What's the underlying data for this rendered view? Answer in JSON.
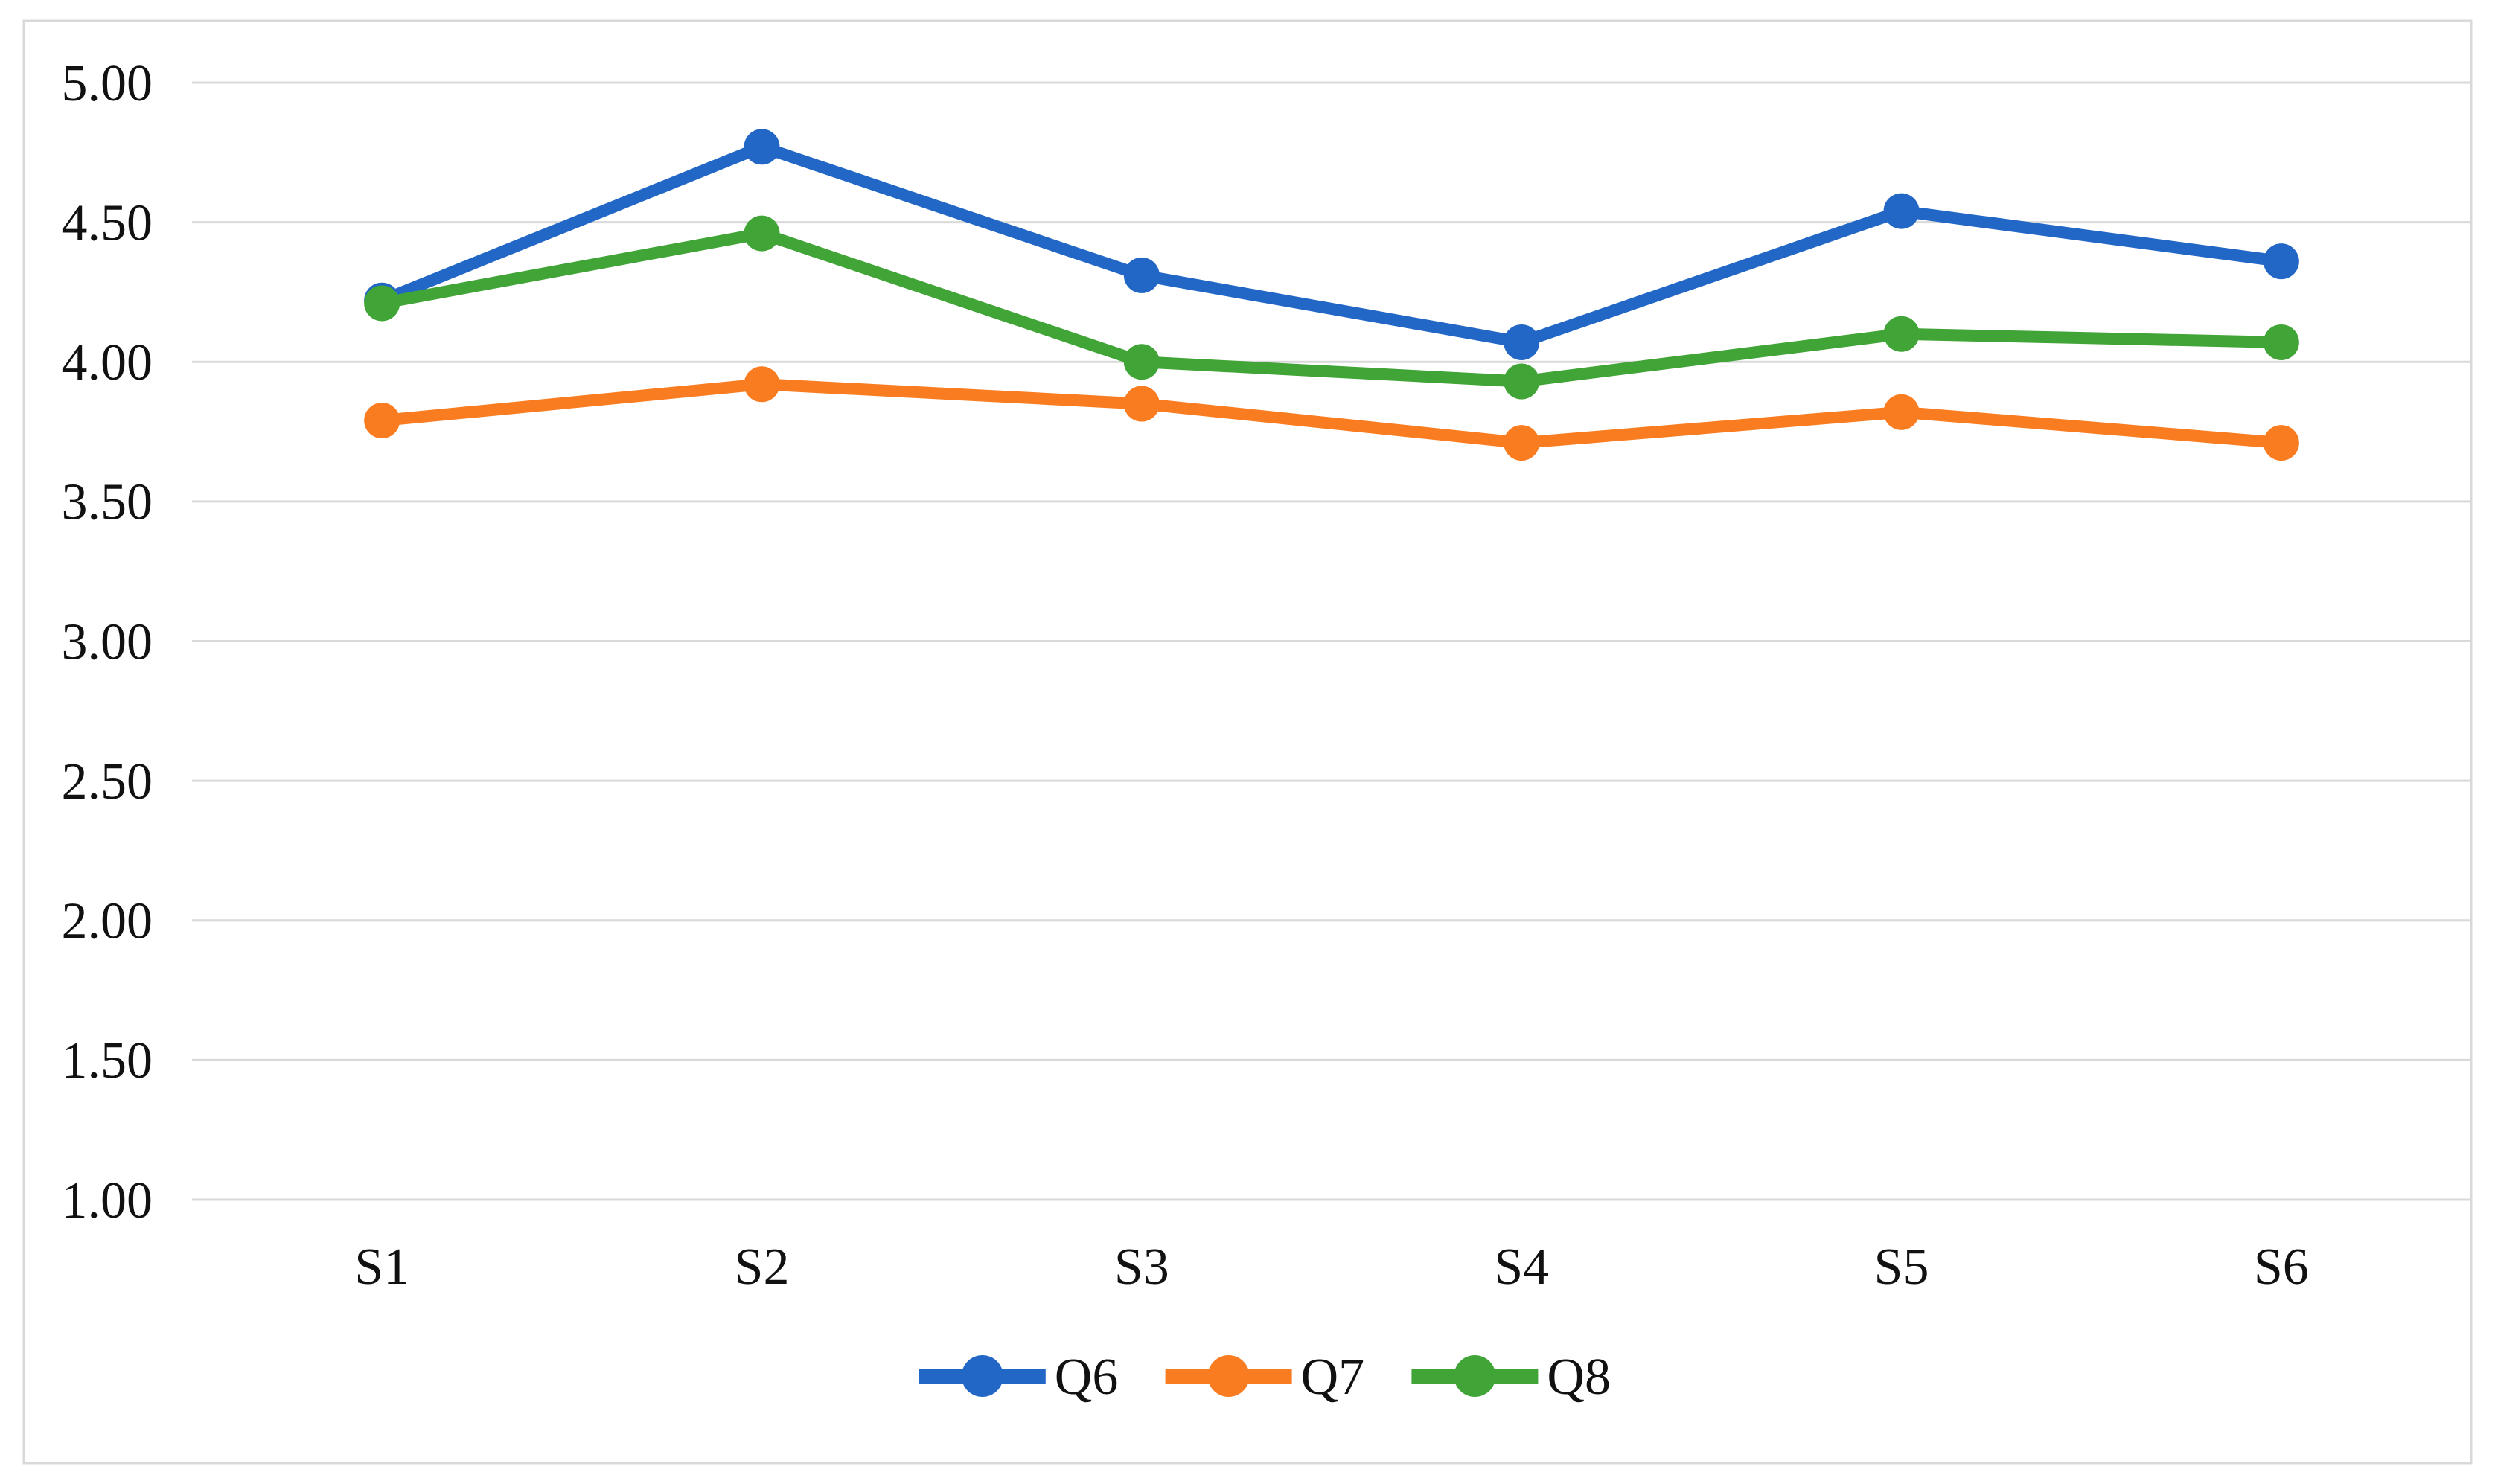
{
  "chart_data": {
    "type": "line",
    "categories": [
      "S1",
      "S2",
      "S3",
      "S4",
      "S5",
      "S6"
    ],
    "series": [
      {
        "name": "Q6",
        "color": "#2267C6",
        "values": [
          4.22,
          4.77,
          4.31,
          4.07,
          4.54,
          4.36
        ]
      },
      {
        "name": "Q7",
        "color": "#F97C20",
        "values": [
          3.79,
          3.92,
          3.85,
          3.71,
          3.82,
          3.71
        ]
      },
      {
        "name": "Q8",
        "color": "#40A436",
        "values": [
          4.21,
          4.46,
          4.0,
          3.93,
          4.1,
          4.07
        ]
      }
    ],
    "title": "",
    "xlabel": "",
    "ylabel": "",
    "ylim": [
      1.0,
      5.0
    ],
    "ytick_step": 0.5,
    "ytick_labels": [
      "5.00",
      "4.50",
      "4.00",
      "3.50",
      "3.00",
      "2.50",
      "2.00",
      "1.50",
      "1.00"
    ],
    "grid": true,
    "gridline_color": "#D9D9D9",
    "border_color": "#D9D9D9",
    "text_color": "#111111",
    "background_color": "#FFFFFF",
    "legend_position": "bottom",
    "marker": "circle"
  }
}
